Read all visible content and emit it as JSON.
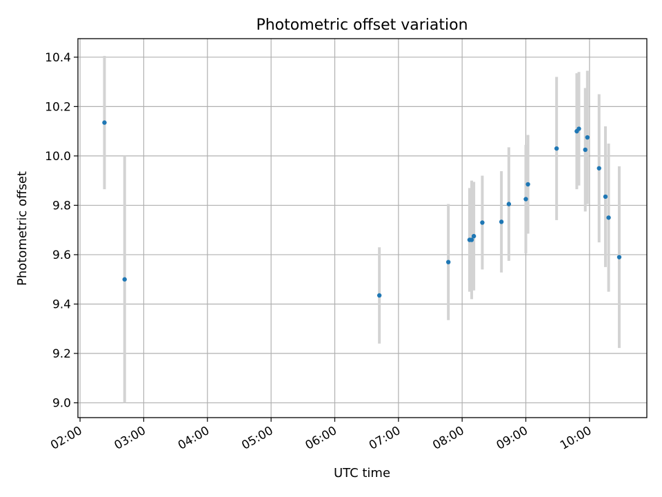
{
  "chart_data": {
    "type": "scatter",
    "title": "Photometric offset variation",
    "xlabel": "UTC time",
    "ylabel": "Photometric offset",
    "x_tick_labels": [
      "02:00",
      "03:00",
      "04:00",
      "05:00",
      "06:00",
      "07:00",
      "08:00",
      "09:00",
      "10:00"
    ],
    "y_tick_labels": [
      "9.0",
      "9.2",
      "9.4",
      "9.6",
      "9.8",
      "10.0",
      "10.2",
      "10.4"
    ],
    "xlim": [
      "01:58",
      "10:54"
    ],
    "ylim": [
      8.94,
      10.475
    ],
    "grid": true,
    "marker_color": "#1f77b4",
    "errorbar_color": "#d3d3d3",
    "points": [
      {
        "x": "02:23",
        "y": 10.135,
        "err": 0.27
      },
      {
        "x": "02:42",
        "y": 9.5,
        "err": 0.5
      },
      {
        "x": "06:42",
        "y": 9.435,
        "err": 0.195
      },
      {
        "x": "07:47",
        "y": 9.57,
        "err": 0.235
      },
      {
        "x": "08:07",
        "y": 9.66,
        "err": 0.21
      },
      {
        "x": "08:09",
        "y": 9.66,
        "err": 0.24
      },
      {
        "x": "08:11",
        "y": 9.675,
        "err": 0.22
      },
      {
        "x": "08:19",
        "y": 9.73,
        "err": 0.19
      },
      {
        "x": "08:37",
        "y": 9.733,
        "err": 0.205
      },
      {
        "x": "08:44",
        "y": 9.805,
        "err": 0.23
      },
      {
        "x": "09:00",
        "y": 9.825,
        "err": 0.22
      },
      {
        "x": "09:02",
        "y": 9.885,
        "err": 0.2
      },
      {
        "x": "09:29",
        "y": 10.03,
        "err": 0.29
      },
      {
        "x": "09:48",
        "y": 10.1,
        "err": 0.235
      },
      {
        "x": "09:50",
        "y": 10.11,
        "err": 0.23
      },
      {
        "x": "09:56",
        "y": 10.025,
        "err": 0.25
      },
      {
        "x": "09:58",
        "y": 10.075,
        "err": 0.27
      },
      {
        "x": "10:09",
        "y": 9.95,
        "err": 0.3
      },
      {
        "x": "10:15",
        "y": 9.835,
        "err": 0.285
      },
      {
        "x": "10:18",
        "y": 9.75,
        "err": 0.3
      },
      {
        "x": "10:28",
        "y": 9.59,
        "err": 0.368
      }
    ]
  }
}
